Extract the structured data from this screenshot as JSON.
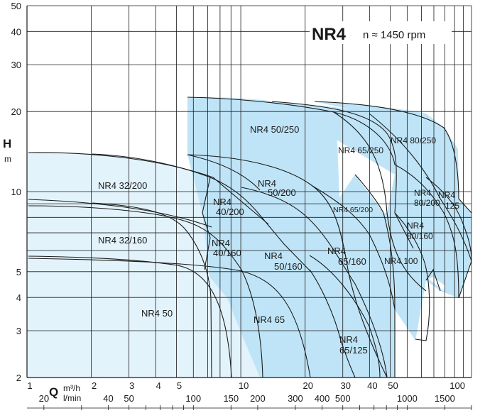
{
  "chart_data": {
    "type": "area",
    "title": "NR4",
    "subtitle": "n ≈ 1450 rpm",
    "ylabel": "H",
    "yunit": "m",
    "xlabel": "Q",
    "xunit_primary": "m³/h",
    "xunit_secondary": "l/min",
    "x_scale": "log",
    "y_scale": "log",
    "xlim": [
      1,
      120
    ],
    "ylim": [
      2,
      50
    ],
    "grid": true,
    "y_ticks": [
      "2",
      "3",
      "4",
      "5",
      "10",
      "20",
      "30",
      "40",
      "50"
    ],
    "x_ticks_m3h": [
      "1",
      "2",
      "3",
      "4",
      "5",
      "10",
      "20",
      "30",
      "40",
      "50",
      "100"
    ],
    "x_ticks_lmin": [
      "20",
      "40",
      "50",
      "100",
      "150",
      "200",
      "300",
      "400",
      "500",
      "1000",
      "1500"
    ],
    "pumps": [
      {
        "name": "NR4 32/200",
        "label": "NR4 32/200",
        "family": "light"
      },
      {
        "name": "NR4 32/160",
        "label": "NR4 32/160",
        "family": "light"
      },
      {
        "name": "NR4 50",
        "label": "NR4 50",
        "family": "light"
      },
      {
        "name": "NR4 65",
        "label": "NR4 65",
        "family": "light"
      },
      {
        "name": "NR4 40/200",
        "label_line1": "NR4",
        "label_line2": "40/200",
        "family": "light"
      },
      {
        "name": "NR4 40/160",
        "label_line1": "NR4",
        "label_line2": "40/160",
        "family": "light"
      },
      {
        "name": "NR4 50/250",
        "label": "NR4 50/250",
        "family": "dark"
      },
      {
        "name": "NR4 50/200",
        "label_line1": "NR4",
        "label_line2": "50/200",
        "family": "dark"
      },
      {
        "name": "NR4 50/160",
        "label_line1": "NR4",
        "label_line2": "50/160",
        "family": "dark"
      },
      {
        "name": "NR4 65/250",
        "label": "NR4 65/250",
        "family": "dark"
      },
      {
        "name": "NR4 65/200",
        "label": "NR4 65/200",
        "family": "dark"
      },
      {
        "name": "NR4 65/160",
        "label_line1": "NR4",
        "label_line2": "65/160",
        "family": "dark"
      },
      {
        "name": "NR4 65/125",
        "label_line1": "NR4",
        "label_line2": "65/125",
        "family": "dark"
      },
      {
        "name": "NR4 80/250",
        "label": "NR4 80/250",
        "family": "dark"
      },
      {
        "name": "NR4 80/200",
        "label_line1": "NR4",
        "label_line2": "80/200",
        "family": "dark"
      },
      {
        "name": "NR4 80/160",
        "label_line1": "NR4",
        "label_line2": "80/160",
        "family": "dark"
      },
      {
        "name": "NR4 100",
        "label": "NR4 100",
        "family": "dark"
      },
      {
        "name": "NR4 125",
        "label_line1": "NR4",
        "label_line2": "125",
        "family": "dark"
      }
    ],
    "colors": {
      "light_fill": "#e3f3fc",
      "dark_fill": "#bfe4f7",
      "line": "#1a1a1a",
      "grid": "#1a1a1a"
    }
  }
}
